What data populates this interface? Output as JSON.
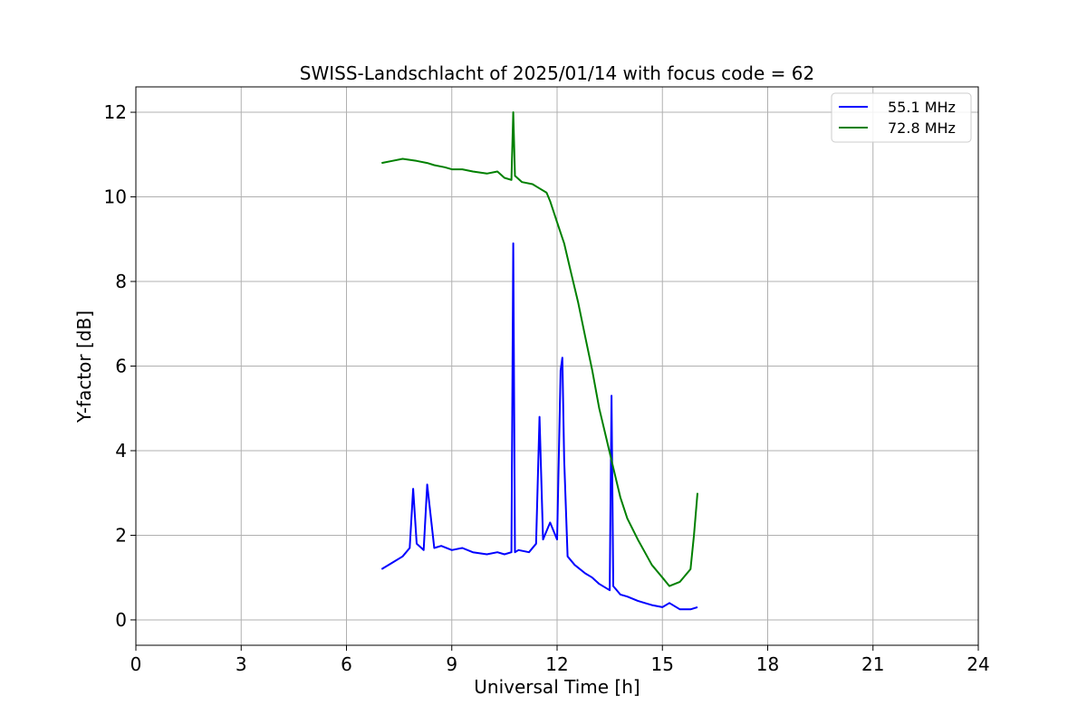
{
  "chart_data": {
    "type": "line",
    "title": "SWISS-Landschlacht of 2025/01/14 with focus code = 62",
    "xlabel": "Universal Time [h]",
    "ylabel": "Y-factor [dB]",
    "xlim": [
      0,
      24
    ],
    "ylim": [
      -0.6,
      12.6
    ],
    "xticks": [
      0,
      3,
      6,
      9,
      12,
      15,
      18,
      21,
      24
    ],
    "yticks": [
      0,
      2,
      4,
      6,
      8,
      10,
      12
    ],
    "xtick_labels": [
      "0",
      "3",
      "6",
      "9",
      "12",
      "15",
      "18",
      "21",
      "24"
    ],
    "ytick_labels": [
      "0",
      "2",
      "4",
      "6",
      "8",
      "10",
      "12"
    ],
    "grid": true,
    "legend_position": "top-right",
    "series": [
      {
        "name": "55.1 MHz",
        "color": "#0000ff",
        "x": [
          7.0,
          7.3,
          7.6,
          7.8,
          7.9,
          8.0,
          8.2,
          8.3,
          8.5,
          8.7,
          9.0,
          9.3,
          9.6,
          10.0,
          10.3,
          10.5,
          10.7,
          10.75,
          10.8,
          10.9,
          11.2,
          11.4,
          11.5,
          11.6,
          11.8,
          12.0,
          12.1,
          12.15,
          12.2,
          12.3,
          12.5,
          12.8,
          13.0,
          13.2,
          13.5,
          13.55,
          13.6,
          13.8,
          14.0,
          14.3,
          14.5,
          14.7,
          15.0,
          15.2,
          15.5,
          15.8,
          16.0
        ],
        "y": [
          1.2,
          1.35,
          1.5,
          1.7,
          3.1,
          1.8,
          1.65,
          3.2,
          1.7,
          1.75,
          1.65,
          1.7,
          1.6,
          1.55,
          1.6,
          1.55,
          1.6,
          8.9,
          1.6,
          1.65,
          1.6,
          1.8,
          4.8,
          1.9,
          2.3,
          1.9,
          5.9,
          6.2,
          3.8,
          1.5,
          1.3,
          1.1,
          1.0,
          0.85,
          0.7,
          5.3,
          0.8,
          0.6,
          0.55,
          0.45,
          0.4,
          0.35,
          0.3,
          0.4,
          0.25,
          0.25,
          0.3
        ]
      },
      {
        "name": "72.8 MHz",
        "color": "#008000",
        "x": [
          7.0,
          7.3,
          7.6,
          8.0,
          8.3,
          8.5,
          8.8,
          9.0,
          9.3,
          9.6,
          10.0,
          10.3,
          10.5,
          10.7,
          10.75,
          10.8,
          11.0,
          11.3,
          11.5,
          11.7,
          11.8,
          12.0,
          12.2,
          12.4,
          12.6,
          12.8,
          13.0,
          13.2,
          13.4,
          13.6,
          13.8,
          14.0,
          14.3,
          14.5,
          14.7,
          15.0,
          15.2,
          15.5,
          15.8,
          15.9,
          16.0
        ],
        "y": [
          10.8,
          10.85,
          10.9,
          10.85,
          10.8,
          10.75,
          10.7,
          10.65,
          10.65,
          10.6,
          10.55,
          10.6,
          10.45,
          10.4,
          12.0,
          10.5,
          10.35,
          10.3,
          10.2,
          10.1,
          9.9,
          9.4,
          8.9,
          8.2,
          7.5,
          6.7,
          5.9,
          5.0,
          4.3,
          3.6,
          2.9,
          2.4,
          1.9,
          1.6,
          1.3,
          1.0,
          0.8,
          0.9,
          1.2,
          2.0,
          3.0
        ]
      }
    ]
  }
}
